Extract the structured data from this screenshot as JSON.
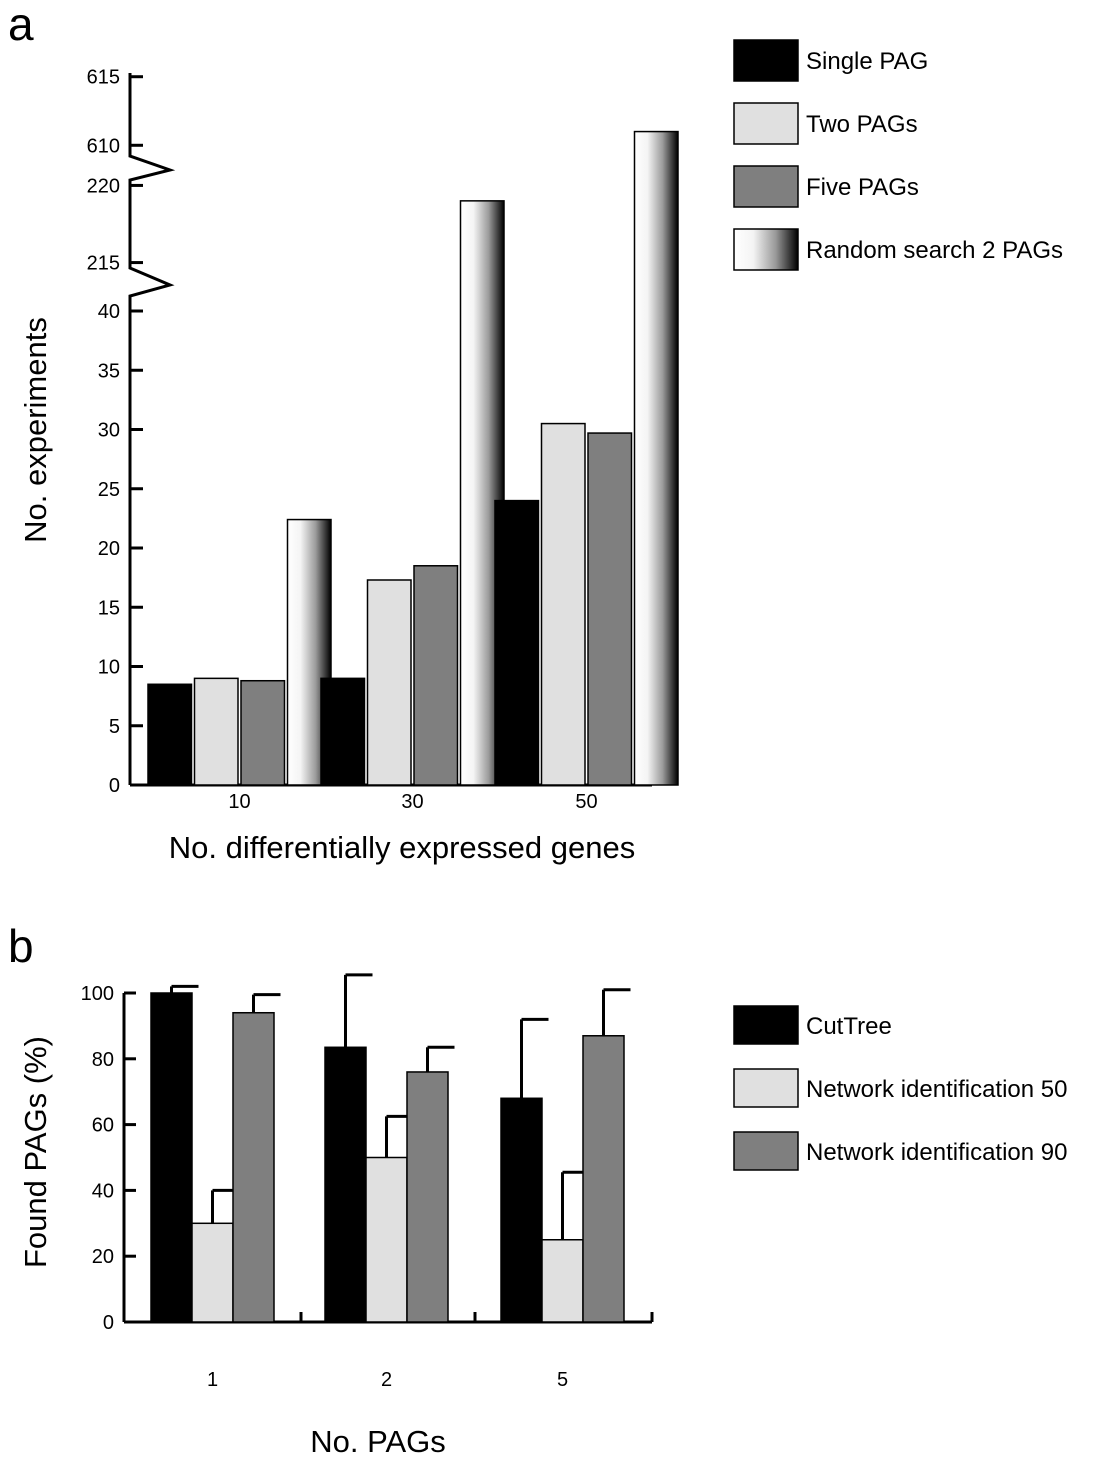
{
  "panel_a": {
    "letter": "a",
    "chart_data": {
      "type": "bar",
      "categories": [
        "10",
        "30",
        "50"
      ],
      "series": [
        {
          "name": "Single PAG",
          "values": [
            8.5,
            9,
            24
          ]
        },
        {
          "name": "Two PAGs",
          "values": [
            9,
            17.3,
            30.5
          ]
        },
        {
          "name": "Five PAGs",
          "values": [
            8.8,
            18.5,
            29.7
          ]
        },
        {
          "name": "Random search 2 PAGs",
          "values": [
            22.4,
            219,
            611
          ]
        }
      ],
      "xlabel": "No. differentially expressed genes",
      "ylabel": "No. experiments",
      "axis_breaks": [
        [
          40,
          214
        ],
        [
          221,
          609
        ]
      ],
      "y_ticks": [
        "0",
        "5",
        "10",
        "15",
        "20",
        "25",
        "30",
        "35",
        "40",
        "215",
        "220",
        "610",
        "615"
      ],
      "colors": {
        "Single PAG": "#000000",
        "Two PAGs": "#e0e0e0",
        "Five PAGs": "#7f7f7f",
        "Random search 2 PAGs": "gradient-white-to-black"
      }
    }
  },
  "panel_b": {
    "letter": "b",
    "chart_data": {
      "type": "bar",
      "categories": [
        "1",
        "2",
        "5"
      ],
      "series": [
        {
          "name": "CutTree",
          "values": [
            100,
            83.5,
            68
          ],
          "error": [
            2,
            22,
            24
          ]
        },
        {
          "name": "Network identification 50",
          "values": [
            30,
            50,
            25
          ],
          "error": [
            10,
            12.5,
            20.5
          ]
        },
        {
          "name": "Network identification 90",
          "values": [
            94,
            76,
            87
          ],
          "error": [
            5.5,
            7.5,
            14
          ]
        }
      ],
      "xlabel": "No. PAGs",
      "ylabel": "Found PAGs (%)",
      "ylim": [
        0,
        100
      ],
      "y_ticks": [
        "0",
        "20",
        "40",
        "60",
        "80",
        "100"
      ],
      "colors": {
        "CutTree": "#000000",
        "Network identification 50": "#e0e0e0",
        "Network identification 90": "#7f7f7f"
      }
    }
  }
}
